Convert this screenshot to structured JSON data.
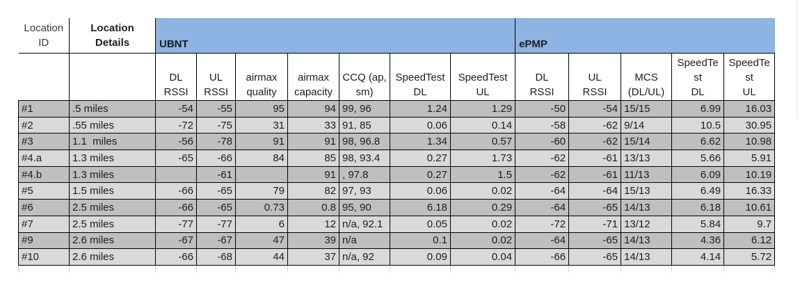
{
  "table": {
    "group_fill": "#8db4e2",
    "border_color": "#000000",
    "row_colors": [
      "#bfbfbf",
      "#d9d9d9"
    ],
    "corner_headers": [
      {
        "lines": [
          "Location",
          "ID"
        ]
      },
      {
        "lines": [
          "Location",
          "Details"
        ]
      }
    ],
    "groups": [
      {
        "label": "UBNT",
        "span": 7
      },
      {
        "label": "ePMP",
        "span": 5
      }
    ],
    "columns": [
      {
        "lines": [
          "DL",
          "RSSI"
        ],
        "align": "right"
      },
      {
        "lines": [
          "UL",
          "RSSI"
        ],
        "align": "right"
      },
      {
        "lines": [
          "airmax",
          "quality"
        ],
        "align": "right"
      },
      {
        "lines": [
          "airmax",
          "capacity"
        ],
        "align": "right"
      },
      {
        "lines": [
          "CCQ (ap,",
          "sm)"
        ],
        "align": "left"
      },
      {
        "lines": [
          "SpeedTest",
          "DL"
        ],
        "align": "right"
      },
      {
        "lines": [
          "SpeedTest",
          "UL"
        ],
        "align": "right"
      },
      {
        "lines": [
          "DL",
          "RSSI"
        ],
        "align": "right"
      },
      {
        "lines": [
          "UL",
          "RSSI"
        ],
        "align": "right"
      },
      {
        "lines": [
          "MCS",
          "(DL/UL)"
        ],
        "align": "left"
      },
      {
        "lines": [
          "SpeedTe",
          "st",
          "DL"
        ],
        "align": "right"
      },
      {
        "lines": [
          "SpeedTe",
          "st",
          "UL"
        ],
        "align": "right"
      }
    ],
    "rows": [
      {
        "id": "#1",
        "details": ".5 miles",
        "values": [
          "-54",
          "-55",
          "95",
          "94",
          "99, 96",
          "1.24",
          "1.29",
          "-50",
          "-54",
          "15/15",
          "6.99",
          "16.03"
        ]
      },
      {
        "id": "#2",
        "details": ".55 miles",
        "values": [
          "-72",
          "-75",
          "31",
          "33",
          "91, 85",
          "0.06",
          "0.14",
          "-58",
          "-62",
          "9/14",
          "10.5",
          "30.95"
        ]
      },
      {
        "id": "#3",
        "details": "1.1  miles",
        "values": [
          "-56",
          "-78",
          "91",
          "91",
          "98, 96.8",
          "1.34",
          "0.57",
          "-60",
          "-62",
          "15/14",
          "6.62",
          "10.98"
        ]
      },
      {
        "id": "#4.a",
        "details": "1.3 miles",
        "values": [
          "-65",
          "-66",
          "84",
          "85",
          "98, 93.4",
          "0.27",
          "1.73",
          "-62",
          "-61",
          "13/13",
          "5.66",
          "5.91"
        ]
      },
      {
        "id": "#4.b",
        "details": "1.3 miles",
        "values": [
          "",
          "-61",
          "",
          "91",
          ", 97.8",
          "0.27",
          "1.5",
          "-62",
          "-61",
          "11/13",
          "6.09",
          "10.19"
        ]
      },
      {
        "id": "#5",
        "details": "1.5 miles",
        "values": [
          "-66",
          "-65",
          "79",
          "82",
          "97, 93",
          "0.06",
          "0.02",
          "-64",
          "-64",
          "15/13",
          "6.49",
          "16.33"
        ]
      },
      {
        "id": "#6",
        "details": "2.5 miles",
        "values": [
          "-66",
          "-65",
          "0.73",
          "0.8",
          "95, 90",
          "6.18",
          "0.29",
          "-64",
          "-65",
          "14/13",
          "6.18",
          "10.61"
        ]
      },
      {
        "id": "#7",
        "details": "2.5 miles",
        "values": [
          "-77",
          "-77",
          "6",
          "12",
          "n/a, 92.1",
          "0.05",
          "0.02",
          "-72",
          "-71",
          "13/12",
          "5.84",
          "9.7"
        ]
      },
      {
        "id": "#9",
        "details": "2.6 miles",
        "values": [
          "-67",
          "-67",
          "47",
          "39",
          "n/a",
          "0.1",
          "0.02",
          "-64",
          "-65",
          "14/13",
          "4.36",
          "6.12"
        ]
      },
      {
        "id": "#10",
        "details": "2.6 miles",
        "values": [
          "-66",
          "-68",
          "44",
          "37",
          "n/a, 92",
          "0.09",
          "0.04",
          "-66",
          "-65",
          "14/13",
          "4.14",
          "5.72"
        ]
      }
    ]
  },
  "chart_data": {
    "type": "table",
    "column_groups": [
      {
        "label": "UBNT",
        "columns": 7
      },
      {
        "label": "ePMP",
        "columns": 5
      }
    ],
    "columns": [
      "Location ID",
      "Location Details",
      "UBNT DL RSSI",
      "UBNT UL RSSI",
      "UBNT airmax quality",
      "UBNT airmax capacity",
      "UBNT CCQ (ap, sm)",
      "UBNT SpeedTest DL",
      "UBNT SpeedTest UL",
      "ePMP DL RSSI",
      "ePMP UL RSSI",
      "ePMP MCS (DL/UL)",
      "ePMP SpeedTest DL",
      "ePMP SpeedTest UL"
    ],
    "rows": [
      [
        "#1",
        ".5 miles",
        -54,
        -55,
        95,
        94,
        "99, 96",
        1.24,
        1.29,
        -50,
        -54,
        "15/15",
        6.99,
        16.03
      ],
      [
        "#2",
        ".55 miles",
        -72,
        -75,
        31,
        33,
        "91, 85",
        0.06,
        0.14,
        -58,
        -62,
        "9/14",
        10.5,
        30.95
      ],
      [
        "#3",
        "1.1 miles",
        -56,
        -78,
        91,
        91,
        "98, 96.8",
        1.34,
        0.57,
        -60,
        -62,
        "15/14",
        6.62,
        10.98
      ],
      [
        "#4.a",
        "1.3 miles",
        -65,
        -66,
        84,
        85,
        "98, 93.4",
        0.27,
        1.73,
        -62,
        -61,
        "13/13",
        5.66,
        5.91
      ],
      [
        "#4.b",
        "1.3 miles",
        null,
        -61,
        null,
        91,
        ", 97.8",
        0.27,
        1.5,
        -62,
        -61,
        "11/13",
        6.09,
        10.19
      ],
      [
        "#5",
        "1.5 miles",
        -66,
        -65,
        79,
        82,
        "97, 93",
        0.06,
        0.02,
        -64,
        -64,
        "15/13",
        6.49,
        16.33
      ],
      [
        "#6",
        "2.5 miles",
        -66,
        -65,
        0.73,
        0.8,
        "95, 90",
        6.18,
        0.29,
        -64,
        -65,
        "14/13",
        6.18,
        10.61
      ],
      [
        "#7",
        "2.5 miles",
        -77,
        -77,
        6,
        12,
        "n/a, 92.1",
        0.05,
        0.02,
        -72,
        -71,
        "13/12",
        5.84,
        9.7
      ],
      [
        "#9",
        "2.6 miles",
        -67,
        -67,
        47,
        39,
        "n/a",
        0.1,
        0.02,
        -64,
        -65,
        "14/13",
        4.36,
        6.12
      ],
      [
        "#10",
        "2.6 miles",
        -66,
        -68,
        44,
        37,
        "n/a, 92",
        0.09,
        0.04,
        -66,
        -65,
        "14/13",
        4.14,
        5.72
      ]
    ]
  }
}
